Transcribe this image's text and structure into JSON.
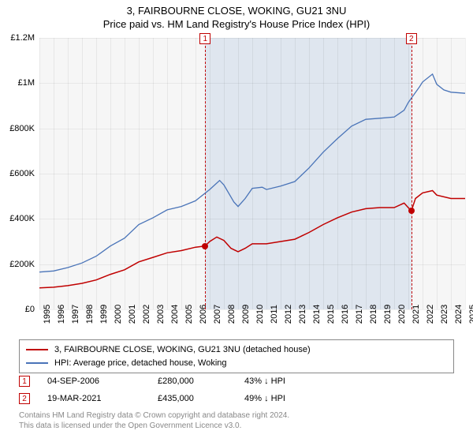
{
  "title": {
    "line1": "3, FAIRBOURNE CLOSE, WOKING, GU21 3NU",
    "line2": "Price paid vs. HM Land Registry's House Price Index (HPI)"
  },
  "chart": {
    "type": "line",
    "background_color": "#f6f6f6",
    "grid_color": "rgba(0,0,0,0.06)",
    "x": {
      "min": 1995,
      "max": 2025,
      "ticks": [
        1995,
        1996,
        1997,
        1998,
        1999,
        2000,
        2001,
        2002,
        2003,
        2004,
        2005,
        2006,
        2007,
        2008,
        2009,
        2010,
        2011,
        2012,
        2013,
        2014,
        2015,
        2016,
        2017,
        2018,
        2019,
        2020,
        2021,
        2022,
        2023,
        2024,
        2025
      ]
    },
    "y": {
      "min": 0,
      "max": 1200000,
      "ticks": [
        0,
        200000,
        400000,
        600000,
        800000,
        1000000,
        1200000
      ],
      "tick_labels": [
        "£0",
        "£200K",
        "£400K",
        "£600K",
        "£800K",
        "£1M",
        "£1.2M"
      ]
    },
    "shade": {
      "from_year": 2006.68,
      "to_year": 2021.21,
      "color": "rgba(120,160,210,0.18)"
    },
    "markers": [
      {
        "id": "1",
        "year": 2006.68,
        "price": 280000
      },
      {
        "id": "2",
        "year": 2021.21,
        "price": 435000
      }
    ],
    "series": [
      {
        "name": "property",
        "label": "3, FAIRBOURNE CLOSE, WOKING, GU21 3NU (detached house)",
        "color": "#c00000",
        "line_width": 1.5,
        "points": [
          [
            1995,
            95000
          ],
          [
            1996,
            98000
          ],
          [
            1997,
            105000
          ],
          [
            1998,
            115000
          ],
          [
            1999,
            130000
          ],
          [
            2000,
            155000
          ],
          [
            2001,
            175000
          ],
          [
            2002,
            210000
          ],
          [
            2003,
            230000
          ],
          [
            2004,
            250000
          ],
          [
            2005,
            260000
          ],
          [
            2006,
            275000
          ],
          [
            2006.68,
            280000
          ],
          [
            2007,
            300000
          ],
          [
            2007.5,
            320000
          ],
          [
            2008,
            305000
          ],
          [
            2008.5,
            270000
          ],
          [
            2009,
            255000
          ],
          [
            2009.5,
            270000
          ],
          [
            2010,
            290000
          ],
          [
            2011,
            290000
          ],
          [
            2012,
            300000
          ],
          [
            2013,
            310000
          ],
          [
            2014,
            340000
          ],
          [
            2015,
            375000
          ],
          [
            2016,
            405000
          ],
          [
            2017,
            430000
          ],
          [
            2018,
            445000
          ],
          [
            2019,
            450000
          ],
          [
            2020,
            450000
          ],
          [
            2020.7,
            470000
          ],
          [
            2021.21,
            435000
          ],
          [
            2021.5,
            490000
          ],
          [
            2022,
            515000
          ],
          [
            2022.7,
            525000
          ],
          [
            2023,
            505000
          ],
          [
            2024,
            490000
          ],
          [
            2025,
            490000
          ]
        ]
      },
      {
        "name": "hpi",
        "label": "HPI: Average price, detached house, Woking",
        "color": "#4a74b8",
        "line_width": 1.3,
        "points": [
          [
            1995,
            165000
          ],
          [
            1996,
            170000
          ],
          [
            1997,
            185000
          ],
          [
            1998,
            205000
          ],
          [
            1999,
            235000
          ],
          [
            2000,
            280000
          ],
          [
            2001,
            315000
          ],
          [
            2002,
            375000
          ],
          [
            2003,
            405000
          ],
          [
            2004,
            440000
          ],
          [
            2005,
            455000
          ],
          [
            2006,
            480000
          ],
          [
            2007,
            530000
          ],
          [
            2007.7,
            570000
          ],
          [
            2008,
            550000
          ],
          [
            2008.7,
            475000
          ],
          [
            2009,
            455000
          ],
          [
            2009.5,
            490000
          ],
          [
            2010,
            535000
          ],
          [
            2010.7,
            540000
          ],
          [
            2011,
            530000
          ],
          [
            2012,
            545000
          ],
          [
            2013,
            565000
          ],
          [
            2014,
            625000
          ],
          [
            2015,
            695000
          ],
          [
            2016,
            755000
          ],
          [
            2017,
            810000
          ],
          [
            2018,
            840000
          ],
          [
            2019,
            845000
          ],
          [
            2020,
            850000
          ],
          [
            2020.7,
            880000
          ],
          [
            2021,
            915000
          ],
          [
            2021.8,
            985000
          ],
          [
            2022,
            1005000
          ],
          [
            2022.7,
            1040000
          ],
          [
            2023,
            995000
          ],
          [
            2023.5,
            970000
          ],
          [
            2024,
            960000
          ],
          [
            2025,
            955000
          ]
        ]
      }
    ]
  },
  "legend": {
    "items": [
      {
        "color": "#c00000",
        "label": "3, FAIRBOURNE CLOSE, WOKING, GU21 3NU (detached house)"
      },
      {
        "color": "#4a74b8",
        "label": "HPI: Average price, detached house, Woking"
      }
    ]
  },
  "sales": [
    {
      "id": "1",
      "date": "04-SEP-2006",
      "price": "£280,000",
      "delta": "43% ↓ HPI"
    },
    {
      "id": "2",
      "date": "19-MAR-2021",
      "price": "£435,000",
      "delta": "49% ↓ HPI"
    }
  ],
  "footnote": {
    "line1": "Contains HM Land Registry data © Crown copyright and database right 2024.",
    "line2": "This data is licensed under the Open Government Licence v3.0."
  }
}
